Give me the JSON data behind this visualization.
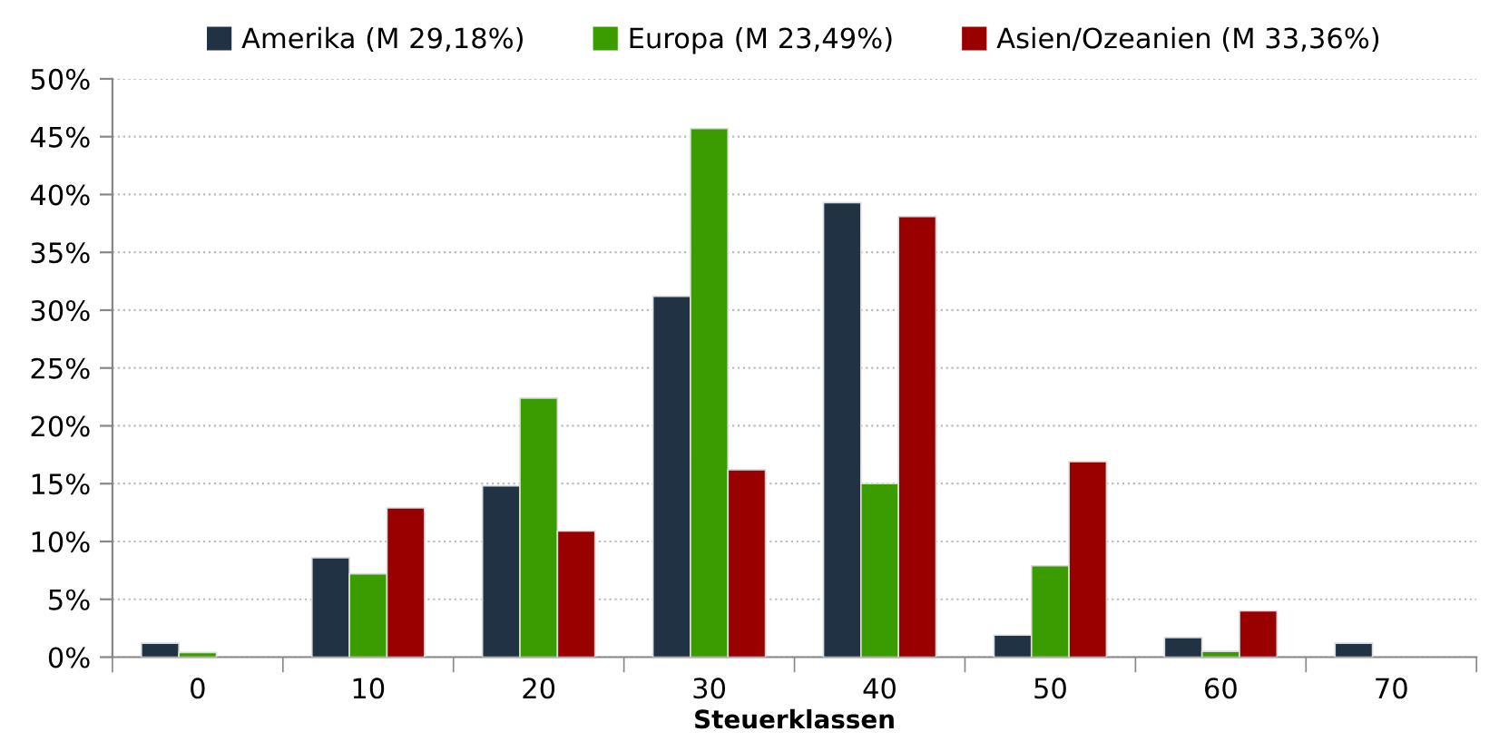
{
  "chart_data": {
    "type": "bar",
    "xlabel": "Steuerklassen",
    "categories": [
      "0",
      "10",
      "20",
      "30",
      "40",
      "50",
      "60",
      "70"
    ],
    "series": [
      {
        "name": "Amerika (M 29,18%)",
        "color": "#203243",
        "values": [
          1.2,
          8.6,
          14.8,
          31.2,
          39.3,
          1.9,
          1.7,
          1.2
        ]
      },
      {
        "name": "Europa (M 23,49%)",
        "color": "#3a9c00",
        "values": [
          0.4,
          7.2,
          22.4,
          45.7,
          15.0,
          7.9,
          0.5,
          null
        ]
      },
      {
        "name": "Asien/Ozeanien (M 33,36%)",
        "color": "#990000",
        "values": [
          null,
          12.9,
          10.9,
          16.2,
          38.1,
          16.9,
          4.0,
          null
        ]
      }
    ],
    "ylim": [
      0,
      50
    ],
    "yticks": [
      {
        "value": 0,
        "label": "0%"
      },
      {
        "value": 5,
        "label": "5%"
      },
      {
        "value": 10,
        "label": "10%"
      },
      {
        "value": 15,
        "label": "15%"
      },
      {
        "value": 20,
        "label": "20%"
      },
      {
        "value": 25,
        "label": "25%"
      },
      {
        "value": 30,
        "label": "30%"
      },
      {
        "value": 35,
        "label": "35%"
      },
      {
        "value": 40,
        "label": "40%"
      },
      {
        "value": 45,
        "label": "45%"
      },
      {
        "value": 50,
        "label": "50%"
      }
    ],
    "grid": "y",
    "legend": "top"
  }
}
